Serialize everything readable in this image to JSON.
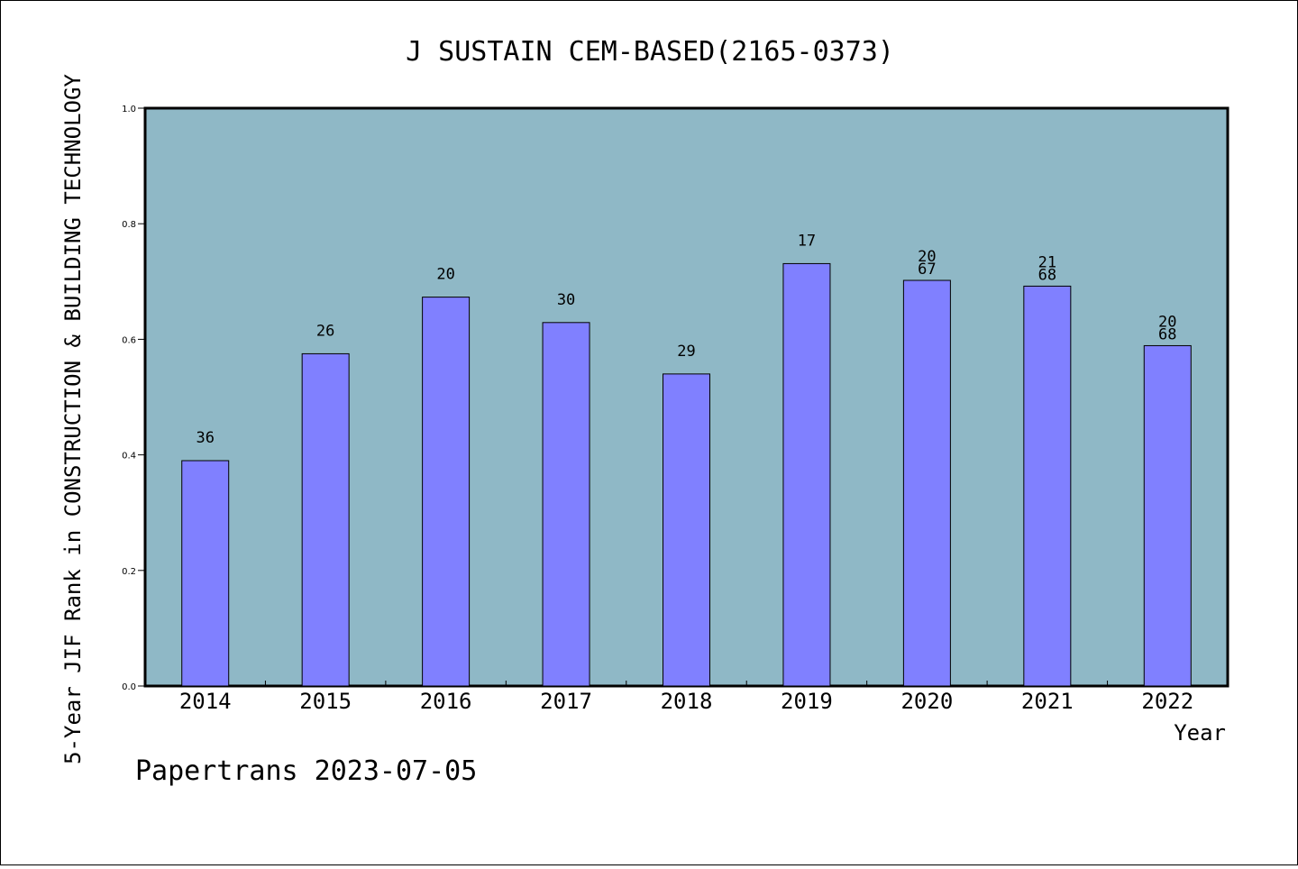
{
  "chart_data": {
    "type": "bar",
    "title": "J SUSTAIN CEM-BASED(2165-0373)",
    "xlabel": "Year",
    "ylabel": "5-Year JIF Rank in CONSTRUCTION & BUILDING TECHNOLOGY",
    "ylim": [
      0,
      1.0
    ],
    "yticks": [
      "0.0",
      "0.2",
      "0.4",
      "0.6",
      "0.8",
      "1.0"
    ],
    "grid": false,
    "colors": {
      "plot_bg": "#8fb8c6",
      "bar": "#8080ff"
    },
    "categories": [
      "2014",
      "2015",
      "2016",
      "2017",
      "2018",
      "2019",
      "2020",
      "2021",
      "2022"
    ],
    "values": [
      0.39,
      0.575,
      0.673,
      0.629,
      0.54,
      0.731,
      0.702,
      0.692,
      0.589
    ],
    "bar_labels": [
      [
        "36"
      ],
      [
        "26"
      ],
      [
        "20"
      ],
      [
        "30"
      ],
      [
        "29"
      ],
      [
        "17"
      ],
      [
        "20",
        "67"
      ],
      [
        "21",
        "68"
      ],
      [
        "20",
        "68"
      ]
    ]
  },
  "footer": {
    "text": "Papertrans 2023-07-05"
  }
}
